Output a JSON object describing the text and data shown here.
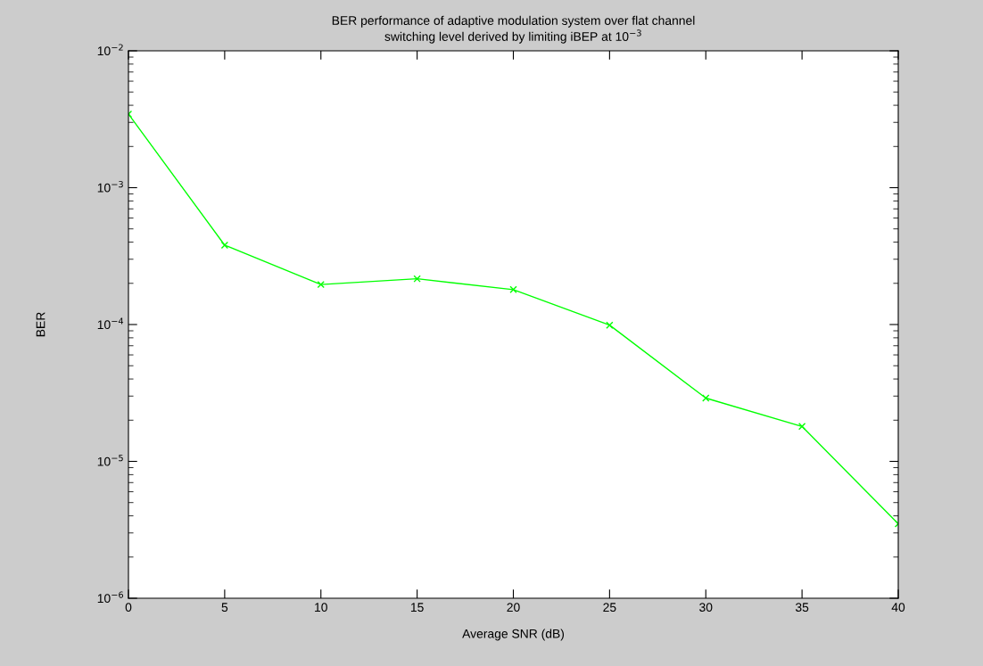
{
  "chart_data": {
    "type": "line",
    "title": "BER performance of adaptive modulation system over flat channel\nswitching level derived by limiting iBEP at 10$^{−3}$",
    "xlabel": "Average SNR (dB)",
    "ylabel": "BER",
    "x": [
      0,
      5,
      10,
      15,
      20,
      25,
      30,
      35,
      40
    ],
    "series": [
      {
        "color": "#00ff00",
        "values": [
          0.00345,
          0.00038,
          0.000196,
          0.000216,
          0.00018,
          9.9e-05,
          2.9e-05,
          1.8e-05,
          3.5e-06
        ]
      }
    ],
    "log": "y",
    "xlim": [
      0,
      40
    ],
    "xticks": [
      0,
      5,
      10,
      15,
      20,
      25,
      30,
      35,
      40
    ],
    "ylim": [
      1e-06,
      0.01
    ],
    "yticks": [
      {
        "value": 1e-06,
        "label": "10$^{−6}$"
      },
      {
        "value": 1e-05,
        "label": "10$^{−5}$"
      },
      {
        "value": 0.0001,
        "label": "10$^{−4}$"
      },
      {
        "value": 0.001,
        "label": "10$^{−3}$"
      },
      {
        "value": 0.01,
        "label": "10$^{−2}$"
      }
    ],
    "marker": "cross",
    "line_style": "solid",
    "grid": false
  }
}
